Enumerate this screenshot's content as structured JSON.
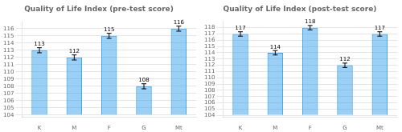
{
  "chart_data": [
    {
      "type": "bar",
      "title": "Quality of Life Index (pre-test score)",
      "categories": [
        "K",
        "M",
        "F",
        "G",
        "Mt"
      ],
      "values": [
        113,
        112,
        115,
        108,
        116
      ],
      "errors": [
        0.35,
        0.35,
        0.35,
        0.35,
        0.35
      ],
      "base": 104,
      "ylim": [
        103.7,
        117
      ],
      "yticks": [
        104,
        105,
        106,
        107,
        108,
        109,
        110,
        111,
        112,
        113,
        114,
        115,
        116
      ],
      "grid": true,
      "data_labels": true
    },
    {
      "type": "bar",
      "title": "Quality of Life Index (post-test score)",
      "categories": [
        "K",
        "M",
        "F",
        "G",
        "Mt"
      ],
      "values": [
        117,
        114,
        118,
        112,
        117
      ],
      "errors": [
        0.35,
        0.35,
        0.35,
        0.35,
        0.35
      ],
      "base": 104,
      "ylim": [
        103.7,
        119
      ],
      "yticks": [
        104,
        105,
        106,
        107,
        108,
        109,
        110,
        111,
        112,
        113,
        114,
        115,
        116,
        117,
        118
      ],
      "grid": true,
      "data_labels": true
    }
  ]
}
